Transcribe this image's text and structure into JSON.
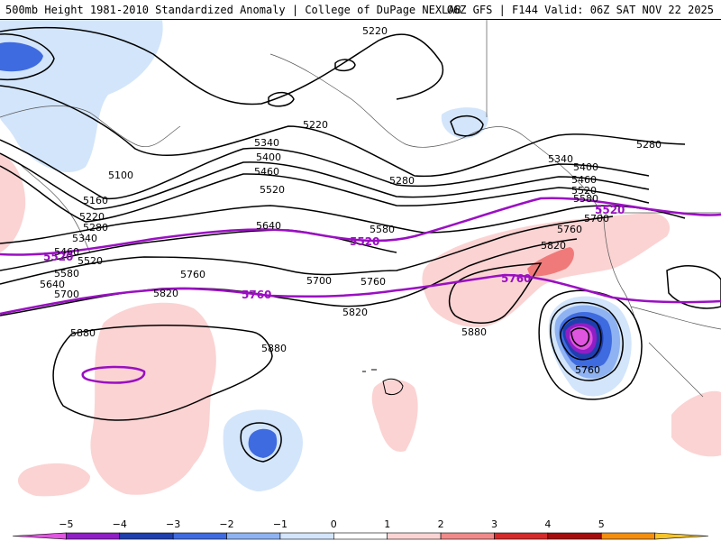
{
  "header": {
    "left": "500mb Height 1981-2010 Standardized Anomaly | College of DuPage NEXLAB",
    "right": "06Z GFS | F144 Valid: 06Z SAT NOV 22 2025"
  },
  "contour_labels": {
    "c5100": "5100",
    "c5160": "5160",
    "c5220": "5220",
    "c5280": "5280",
    "c5340": "5340",
    "c5400": "5400",
    "c5460": "5460",
    "c5520": "5520",
    "c5580": "5580",
    "c5640": "5640",
    "c5700": "5700",
    "c5760": "5760",
    "c5820": "5820",
    "c5880": "5880"
  },
  "colorbar": {
    "ticks": [
      "−5",
      "−4",
      "−3",
      "−2",
      "−1",
      "0",
      "1",
      "2",
      "3",
      "4",
      "5"
    ],
    "colors": [
      "#e055e0",
      "#8f1ec6",
      "#1f3fae",
      "#3f6be0",
      "#8fb3f2",
      "#d3e5fb",
      "#ffffff",
      "#fbd3d3",
      "#f08a8a",
      "#d42a2a",
      "#a50d0d",
      "#f58e0c",
      "#f7c42a"
    ]
  },
  "colors": {
    "anomaly_pos_light": "#fbd3d3",
    "anomaly_pos_mid": "#f07a7a",
    "anomaly_neg_light": "#d3e5fb",
    "anomaly_neg_mid": "#3f6be0",
    "anomaly_neg_strong": "#1f3fae",
    "anomaly_neg_extreme": "#8f1ec6",
    "anomaly_neg_max": "#e055e0",
    "highlight_contour": "#9a0fc2"
  }
}
